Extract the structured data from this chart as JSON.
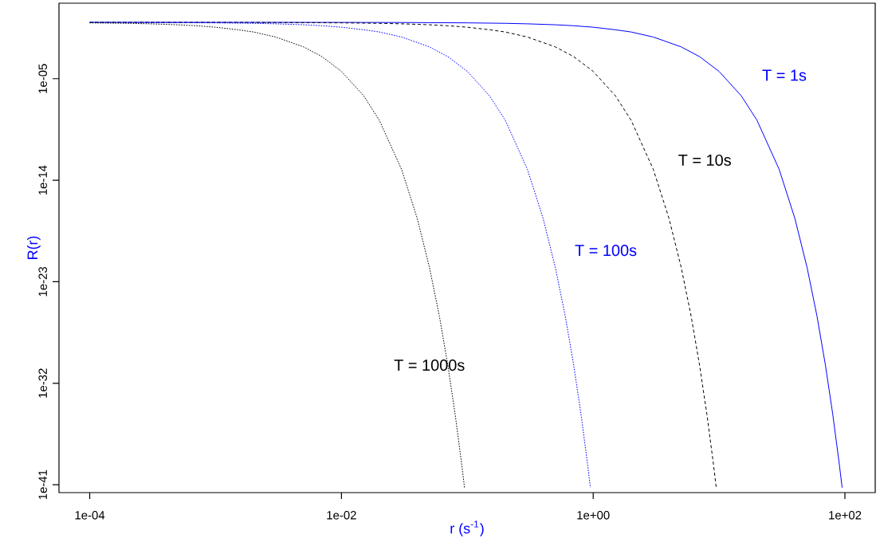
{
  "chart_data": {
    "type": "line",
    "xlabel": "r (s$^{-1}$)",
    "ylabel": "R(r)",
    "log": "xy",
    "grid": false,
    "legend": false,
    "marker": "none",
    "xlim": [
      5.7e-05,
      174
    ],
    "ylim": [
      2e-42,
      50
    ],
    "xticks": [
      {
        "value": 0.0001,
        "label": "1e-04"
      },
      {
        "value": 0.01,
        "label": "1e-02"
      },
      {
        "value": 1,
        "label": "1e+00"
      },
      {
        "value": 100,
        "label": "1e+02"
      }
    ],
    "yticks": [
      {
        "value": 1e-05,
        "label": "1e-05"
      },
      {
        "value": 1e-14,
        "label": "1e-14"
      },
      {
        "value": 1e-23,
        "label": "1e-23"
      },
      {
        "value": 1e-32,
        "label": "1e-32"
      },
      {
        "value": 1e-41,
        "label": "1e-41"
      }
    ],
    "series": [
      {
        "name": "T = 1s",
        "color": "#0000ff",
        "line_style": "solid",
        "x": [
          0.0001,
          0.001,
          0.01,
          0.03,
          0.1,
          0.2,
          0.3,
          0.5,
          0.7,
          1,
          1.5,
          2,
          3,
          5,
          7,
          10,
          15,
          20,
          30,
          40,
          50,
          60,
          70,
          80,
          90,
          95
        ],
        "values": [
          1,
          1,
          0.99,
          0.97,
          0.9,
          0.82,
          0.74,
          0.61,
          0.5,
          0.37,
          0.22,
          0.14,
          0.05,
          0.0067,
          0.00091,
          4.5e-05,
          3.1e-07,
          2.1e-09,
          9.4e-14,
          4.2e-18,
          1.9e-22,
          8.8e-27,
          4e-31,
          1.8e-35,
          8.2e-40,
          5.5e-42
        ]
      },
      {
        "name": "T = 10s",
        "color": "#000000",
        "line_style": "dashed",
        "x": [
          0.0001,
          0.001,
          0.003,
          0.01,
          0.02,
          0.03,
          0.05,
          0.07,
          0.1,
          0.15,
          0.2,
          0.3,
          0.5,
          0.7,
          1,
          1.5,
          2,
          3,
          4,
          5,
          6,
          7,
          8,
          9,
          9.5
        ],
        "values": [
          1,
          0.99,
          0.97,
          0.9,
          0.82,
          0.74,
          0.61,
          0.5,
          0.37,
          0.22,
          0.14,
          0.05,
          0.0067,
          0.00091,
          4.5e-05,
          3.1e-07,
          2.1e-09,
          9.4e-14,
          4.2e-18,
          1.9e-22,
          8.8e-27,
          4e-31,
          1.8e-35,
          8.2e-40,
          5.5e-42
        ]
      },
      {
        "name": "T = 100s",
        "color": "#0000ff",
        "line_style": "dotted",
        "x": [
          0.0001,
          0.0003,
          0.001,
          0.002,
          0.003,
          0.005,
          0.007,
          0.01,
          0.015,
          0.02,
          0.03,
          0.05,
          0.07,
          0.1,
          0.15,
          0.2,
          0.3,
          0.4,
          0.5,
          0.6,
          0.7,
          0.8,
          0.9,
          0.95
        ],
        "values": [
          0.99,
          0.97,
          0.9,
          0.82,
          0.74,
          0.61,
          0.5,
          0.37,
          0.22,
          0.14,
          0.05,
          0.0067,
          0.00091,
          4.5e-05,
          3.1e-07,
          2.1e-09,
          9.4e-14,
          4.2e-18,
          1.9e-22,
          8.8e-27,
          4e-31,
          1.8e-35,
          8.2e-40,
          5.5e-42
        ]
      },
      {
        "name": "T = 1000s",
        "color": "#000000",
        "line_style": "dotted",
        "x": [
          0.0001,
          0.0002,
          0.0003,
          0.0005,
          0.0007,
          0.001,
          0.0015,
          0.002,
          0.003,
          0.005,
          0.007,
          0.01,
          0.015,
          0.02,
          0.03,
          0.04,
          0.05,
          0.06,
          0.07,
          0.08,
          0.09,
          0.095
        ],
        "values": [
          0.9,
          0.82,
          0.74,
          0.61,
          0.5,
          0.37,
          0.22,
          0.14,
          0.05,
          0.0067,
          0.00091,
          4.5e-05,
          3.1e-07,
          2.1e-09,
          9.4e-14,
          4.2e-18,
          1.9e-22,
          8.8e-27,
          4e-31,
          1.8e-35,
          8.2e-40,
          5.5e-42
        ]
      }
    ]
  }
}
